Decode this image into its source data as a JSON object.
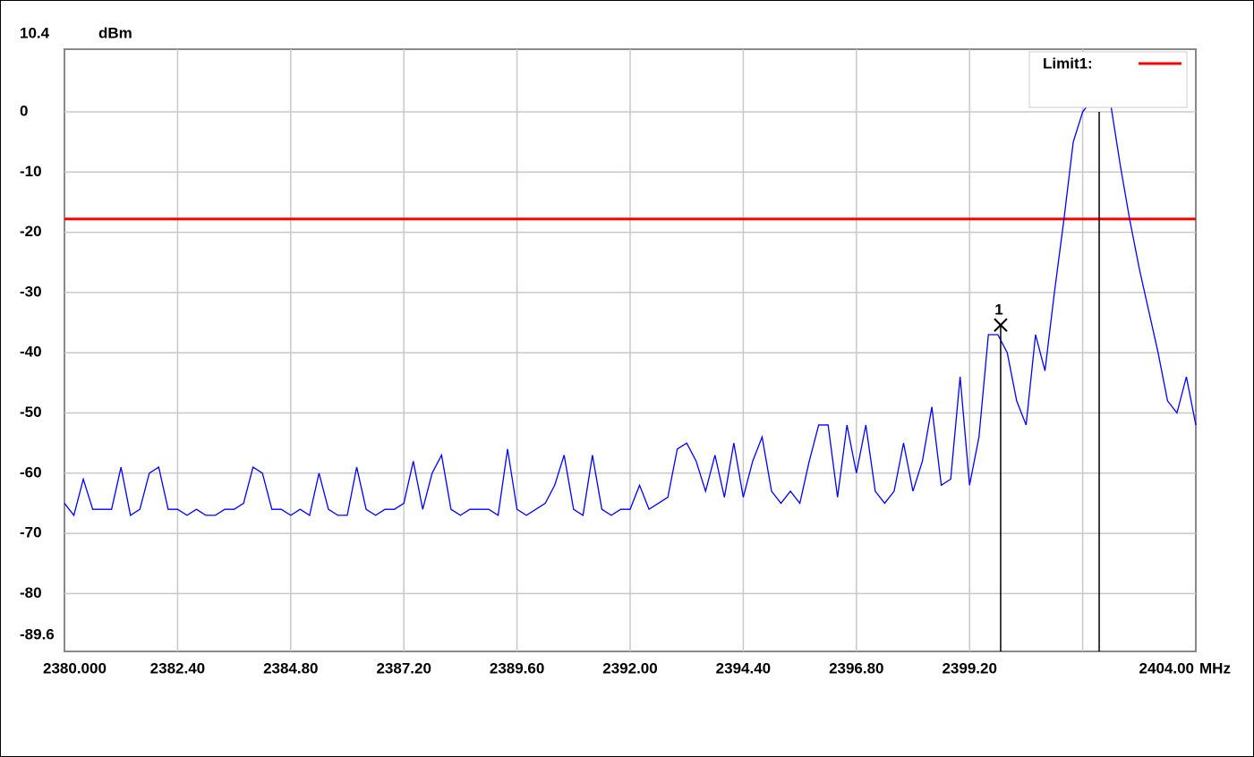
{
  "chart_data": {
    "type": "line",
    "ylabel": "dBm",
    "xlabel": "MHz",
    "xlim": [
      2380,
      2404
    ],
    "ylim": [
      -89.6,
      10.4
    ],
    "xticks": [
      {
        "value": 2380,
        "label": "2380.000"
      },
      {
        "value": 2382.4,
        "label": "2382.40"
      },
      {
        "value": 2384.8,
        "label": "2384.80"
      },
      {
        "value": 2387.2,
        "label": "2387.20"
      },
      {
        "value": 2389.6,
        "label": "2389.60"
      },
      {
        "value": 2392,
        "label": "2392.00"
      },
      {
        "value": 2394.4,
        "label": "2394.40"
      },
      {
        "value": 2396.8,
        "label": "2396.80"
      },
      {
        "value": 2399.2,
        "label": "2399.20"
      },
      {
        "value": 2401.6,
        "label": null
      },
      {
        "value": 2404,
        "label": "2404.00"
      }
    ],
    "yticks": [
      10.4,
      0,
      -10,
      -20,
      -30,
      -40,
      -50,
      -60,
      -70,
      -80,
      -89.6
    ],
    "grid": true,
    "color": "#0000ff",
    "x": [
      2380.0,
      2380.2,
      2380.4,
      2380.6,
      2380.8,
      2381.0,
      2381.2,
      2381.4,
      2381.6,
      2381.8,
      2382.0,
      2382.2,
      2382.4,
      2382.6,
      2382.8,
      2383.0,
      2383.2,
      2383.4,
      2383.6,
      2383.8,
      2384.0,
      2384.2,
      2384.4,
      2384.6,
      2384.8,
      2385.0,
      2385.2,
      2385.4,
      2385.6,
      2385.8,
      2386.0,
      2386.2,
      2386.4,
      2386.6,
      2386.8,
      2387.0,
      2387.2,
      2387.4,
      2387.6,
      2387.8,
      2388.0,
      2388.2,
      2388.4,
      2388.6,
      2388.8,
      2389.0,
      2389.2,
      2389.4,
      2389.6,
      2389.8,
      2390.0,
      2390.2,
      2390.4,
      2390.6,
      2390.8,
      2391.0,
      2391.2,
      2391.4,
      2391.6,
      2391.8,
      2392.0,
      2392.2,
      2392.4,
      2392.6,
      2392.8,
      2393.0,
      2393.2,
      2393.4,
      2393.6,
      2393.8,
      2394.0,
      2394.2,
      2394.4,
      2394.6,
      2394.8,
      2395.0,
      2395.2,
      2395.4,
      2395.6,
      2395.8,
      2396.0,
      2396.2,
      2396.4,
      2396.6,
      2396.8,
      2397.0,
      2397.2,
      2397.4,
      2397.6,
      2397.8,
      2398.0,
      2398.2,
      2398.4,
      2398.6,
      2398.8,
      2399.0,
      2399.2,
      2399.4,
      2399.6,
      2399.8,
      2400.0,
      2400.2,
      2400.4,
      2400.6,
      2400.8,
      2401.0,
      2401.2,
      2401.4,
      2401.6,
      2401.8,
      2402.0,
      2402.2,
      2402.4,
      2402.6,
      2402.8,
      2403.0,
      2403.2,
      2403.4,
      2403.6,
      2403.8,
      2404.0
    ],
    "values": [
      -65,
      -67,
      -61,
      -66,
      -66,
      -66,
      -59,
      -67,
      -66,
      -60,
      -59,
      -66,
      -66,
      -67,
      -66,
      -67,
      -67,
      -66,
      -66,
      -65,
      -59,
      -60,
      -66,
      -66,
      -67,
      -66,
      -67,
      -60,
      -66,
      -67,
      -67,
      -59,
      -66,
      -67,
      -66,
      -66,
      -65,
      -58,
      -66,
      -60,
      -57,
      -66,
      -67,
      -66,
      -66,
      -66,
      -67,
      -56,
      -66,
      -67,
      -66,
      -65,
      -62,
      -57,
      -66,
      -67,
      -57,
      -66,
      -67,
      -66,
      -66,
      -62,
      -66,
      -65,
      -64,
      -56,
      -55,
      -58,
      -63,
      -57,
      -64,
      -55,
      -64,
      -58,
      -54,
      -63,
      -65,
      -63,
      -65,
      -58,
      -52,
      -52,
      -64,
      -52,
      -60,
      -52,
      -63,
      -65,
      -63,
      -55,
      -63,
      -58,
      -49,
      -62,
      -61,
      -44,
      -62,
      -54,
      -37,
      -37,
      -40,
      -48,
      -52,
      -37,
      -43,
      -30,
      -18,
      -5,
      0,
      2,
      2,
      1,
      -9,
      -18,
      -26,
      -33,
      -40,
      -48,
      -50,
      -44,
      -52
    ],
    "limit": {
      "name": "Limit1:",
      "value": -17.8,
      "color": "#ff0000"
    },
    "markers": [
      {
        "label": "1",
        "x": 2399.86,
        "y": -35.4
      }
    ],
    "vlines": [
      2401.95
    ]
  }
}
